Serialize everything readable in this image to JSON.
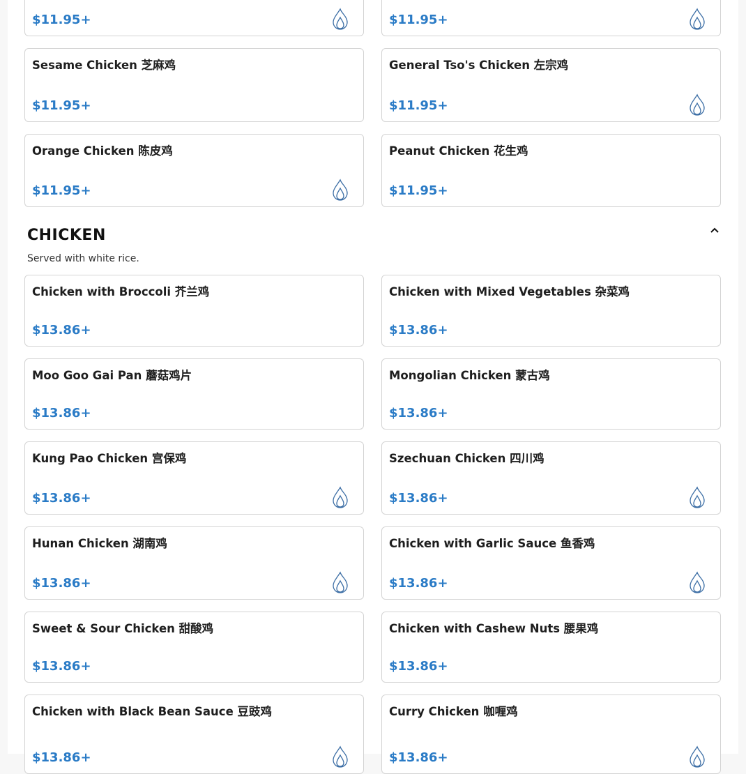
{
  "colors": {
    "price": "#2a7bc6",
    "flame": "#3c6ea5",
    "border": "#d4d4d4"
  },
  "sections": [
    {
      "title": "",
      "description": "",
      "items": [
        {
          "name": "",
          "price": "$11.95+",
          "spicy": true
        },
        {
          "name": "",
          "price": "$11.95+",
          "spicy": true
        },
        {
          "name": "Sesame Chicken 芝麻鸡",
          "price": "$11.95+",
          "spicy": false
        },
        {
          "name": "General Tso's Chicken 左宗鸡",
          "price": "$11.95+",
          "spicy": true
        },
        {
          "name": "Orange Chicken 陈皮鸡",
          "price": "$11.95+",
          "spicy": true
        },
        {
          "name": "Peanut Chicken 花生鸡",
          "price": "$11.95+",
          "spicy": false
        }
      ]
    },
    {
      "title": "CHICKEN",
      "description": "Served with white rice.",
      "collapse_icon": "chevron-up-icon",
      "items": [
        {
          "name": "Chicken with Broccoli 芥兰鸡",
          "price": "$13.86+",
          "spicy": false
        },
        {
          "name": "Chicken with Mixed Vegetables 杂菜鸡",
          "price": "$13.86+",
          "spicy": false
        },
        {
          "name": "Moo Goo Gai Pan 蘑菇鸡片",
          "price": "$13.86+",
          "spicy": false
        },
        {
          "name": "Mongolian Chicken 蒙古鸡",
          "price": "$13.86+",
          "spicy": false
        },
        {
          "name": "Kung Pao Chicken 宫保鸡",
          "price": "$13.86+",
          "spicy": true
        },
        {
          "name": "Szechuan Chicken 四川鸡",
          "price": "$13.86+",
          "spicy": true
        },
        {
          "name": "Hunan Chicken 湖南鸡",
          "price": "$13.86+",
          "spicy": true
        },
        {
          "name": "Chicken with Garlic Sauce 鱼香鸡",
          "price": "$13.86+",
          "spicy": true
        },
        {
          "name": "Sweet & Sour Chicken 甜酸鸡",
          "price": "$13.86+",
          "spicy": false
        },
        {
          "name": "Chicken with Cashew Nuts 腰果鸡",
          "price": "$13.86+",
          "spicy": false
        },
        {
          "name": "Chicken with Black Bean Sauce 豆豉鸡",
          "price": "$13.86+",
          "spicy": true
        },
        {
          "name": "Curry Chicken 咖喱鸡",
          "price": "$13.86+",
          "spicy": true
        }
      ]
    }
  ]
}
